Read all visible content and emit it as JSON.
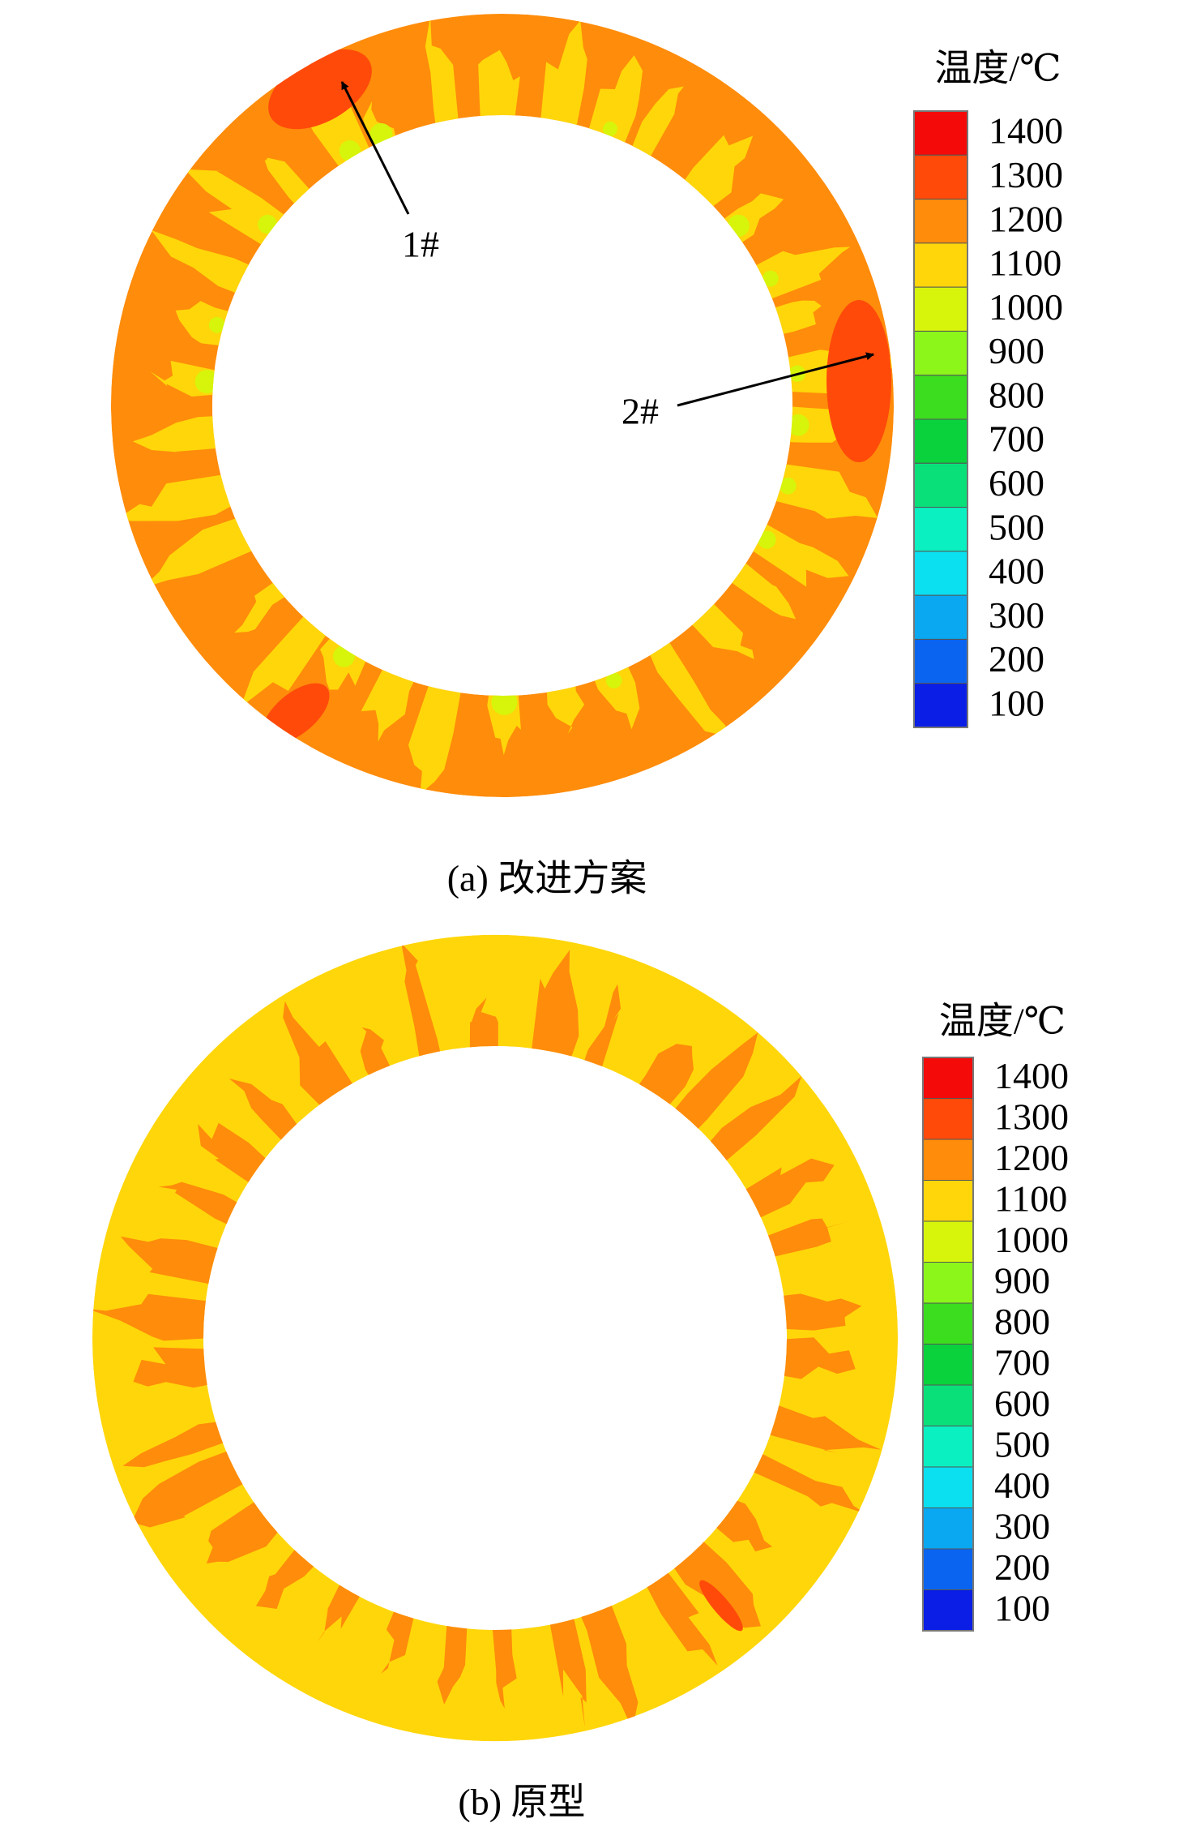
{
  "panels": [
    {
      "caption": "(a) 改进方案",
      "colorbar": {
        "title": "温度/℃",
        "ticks": [
          1400,
          1300,
          1200,
          1100,
          1000,
          900,
          800,
          700,
          600,
          500,
          400,
          300,
          200,
          100
        ],
        "colors": [
          "#f50a0a",
          "#ff4a0a",
          "#ff8c0a",
          "#ffd60a",
          "#d6f50a",
          "#8cf51a",
          "#3cdc1e",
          "#0ad23c",
          "#0ae07a",
          "#0af0c0",
          "#0ae0f0",
          "#0aa8f0",
          "#0a64f0",
          "#0a1ee6"
        ]
      },
      "annotations": [
        "1#",
        "2#"
      ]
    },
    {
      "caption": "(b) 原型",
      "colorbar": {
        "title": "温度/℃",
        "ticks": [
          1400,
          1300,
          1200,
          1100,
          1000,
          900,
          800,
          700,
          600,
          500,
          400,
          300,
          200,
          100
        ],
        "colors": [
          "#f50a0a",
          "#ff4a0a",
          "#ff8c0a",
          "#ffd60a",
          "#d6f50a",
          "#8cf51a",
          "#3cdc1e",
          "#0ad23c",
          "#0ae07a",
          "#0af0c0",
          "#0ae0f0",
          "#0aa8f0",
          "#0a64f0",
          "#0a1ee6"
        ]
      }
    }
  ]
}
